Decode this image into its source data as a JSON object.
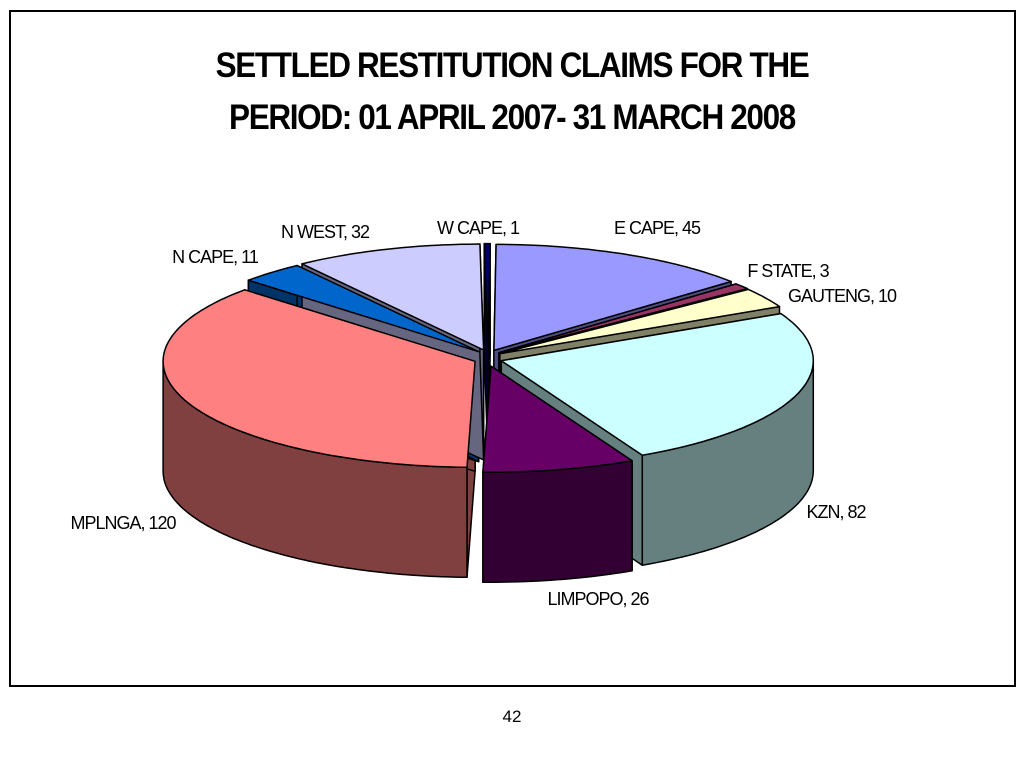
{
  "chart_data": {
    "type": "pie3d",
    "title": "SETTLED RESTITUTION CLAIMS FOR THE PERIOD: 01 APRIL 2007- 31 MARCH 2008",
    "values": [
      1,
      45,
      3,
      10,
      82,
      26,
      120,
      11,
      32
    ],
    "value_labels": [
      "W CAPE, 1",
      "E CAPE, 45",
      "F STATE, 3",
      "GAUTENG, 10",
      "KZN, 82",
      "LIMPOPO, 26",
      "MPLNGA, 120",
      "N CAPE, 11",
      "N WEST, 32"
    ],
    "colors": [
      "#000066",
      "#9999ff",
      "#993366",
      "#ffffcc",
      "#ccffff",
      "#660066",
      "#ff8080",
      "#0066cc",
      "#ccccff"
    ]
  },
  "page_number": "42"
}
